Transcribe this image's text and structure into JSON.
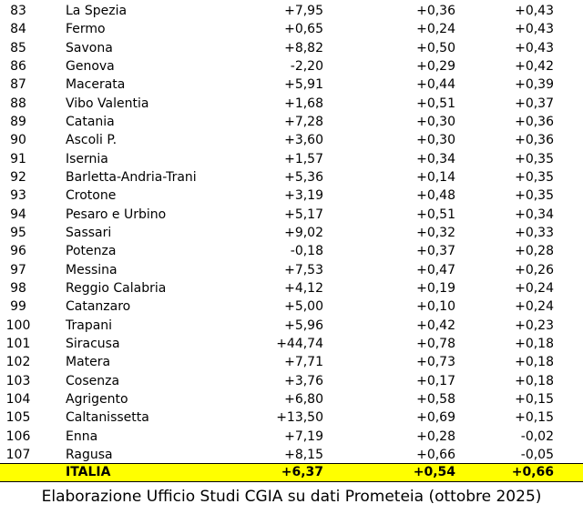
{
  "table": {
    "rows": [
      [
        83,
        "La Spezia",
        "+7,95",
        "+0,36",
        "+0,43"
      ],
      [
        84,
        "Fermo",
        "+0,65",
        "+0,24",
        "+0,43"
      ],
      [
        85,
        "Savona",
        "+8,82",
        "+0,50",
        "+0,43"
      ],
      [
        86,
        "Genova",
        "-2,20",
        "+0,29",
        "+0,42"
      ],
      [
        87,
        "Macerata",
        "+5,91",
        "+0,44",
        "+0,39"
      ],
      [
        88,
        "Vibo Valentia",
        "+1,68",
        "+0,51",
        "+0,37"
      ],
      [
        89,
        "Catania",
        "+7,28",
        "+0,30",
        "+0,36"
      ],
      [
        90,
        "Ascoli P.",
        "+3,60",
        "+0,30",
        "+0,36"
      ],
      [
        91,
        "Isernia",
        "+1,57",
        "+0,34",
        "+0,35"
      ],
      [
        92,
        "Barletta-Andria-Trani",
        "+5,36",
        "+0,14",
        "+0,35"
      ],
      [
        93,
        "Crotone",
        "+3,19",
        "+0,48",
        "+0,35"
      ],
      [
        94,
        "Pesaro e Urbino",
        "+5,17",
        "+0,51",
        "+0,34"
      ],
      [
        95,
        "Sassari",
        "+9,02",
        "+0,32",
        "+0,33"
      ],
      [
        96,
        "Potenza",
        "-0,18",
        "+0,37",
        "+0,28"
      ],
      [
        97,
        "Messina",
        "+7,53",
        "+0,47",
        "+0,26"
      ],
      [
        98,
        "Reggio Calabria",
        "+4,12",
        "+0,19",
        "+0,24"
      ],
      [
        99,
        "Catanzaro",
        "+5,00",
        "+0,10",
        "+0,24"
      ],
      [
        100,
        "Trapani",
        "+5,96",
        "+0,42",
        "+0,23"
      ],
      [
        101,
        "Siracusa",
        "+44,74",
        "+0,78",
        "+0,18"
      ],
      [
        102,
        "Matera",
        "+7,71",
        "+0,73",
        "+0,18"
      ],
      [
        103,
        "Cosenza",
        "+3,76",
        "+0,17",
        "+0,18"
      ],
      [
        104,
        "Agrigento",
        "+6,80",
        "+0,58",
        "+0,15"
      ],
      [
        105,
        "Caltanissetta",
        "+13,50",
        "+0,69",
        "+0,15"
      ],
      [
        106,
        "Enna",
        "+7,19",
        "+0,28",
        "-0,02"
      ],
      [
        107,
        "Ragusa",
        "+8,15",
        "+0,66",
        "-0,05"
      ]
    ],
    "total": {
      "name": "ITALIA",
      "values": [
        "+6,37",
        "+0,54",
        "+0,66"
      ]
    }
  },
  "caption": "Elaborazione Ufficio Studi CGIA su dati Prometeia (ottobre 2025)"
}
